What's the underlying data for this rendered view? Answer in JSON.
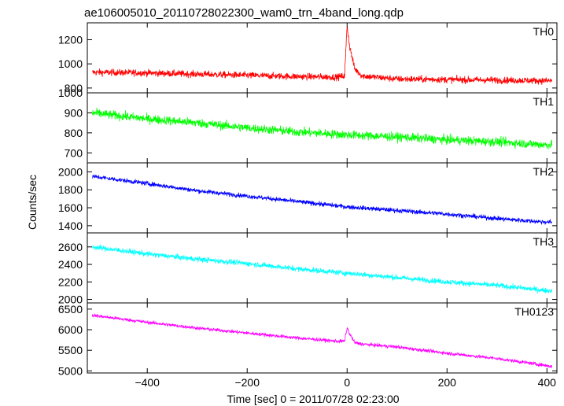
{
  "chart_data": {
    "type": "line",
    "title": "ae106005010_20110728022300_wam0_trn_4band_long.qdp",
    "xlabel": "Time [sec] 0 = 2011/07/28 02:23:00",
    "ylabel": "Counts/sec",
    "xlim": [
      -520,
      420
    ],
    "x_ticks": [
      -400,
      -200,
      0,
      200,
      400
    ],
    "x_tick_labels": [
      "−400",
      "−200",
      "0",
      "200",
      "400"
    ],
    "grid": false,
    "panels": [
      {
        "name": "TH0",
        "color": "#ff0000",
        "ylim": [
          760,
          1340
        ],
        "y_ticks": [
          800,
          1000,
          1200
        ],
        "y_tick_labels": [
          "800",
          "1000",
          "1200"
        ],
        "x": [
          -510,
          -400,
          -300,
          -200,
          -100,
          -20,
          -5,
          0,
          5,
          15,
          30,
          100,
          200,
          300,
          400,
          410
        ],
        "y": [
          930,
          925,
          915,
          905,
          895,
          890,
          900,
          1320,
          1150,
          960,
          900,
          875,
          870,
          865,
          860,
          860
        ],
        "noise": 50
      },
      {
        "name": "TH1",
        "color": "#00ff00",
        "ylim": [
          650,
          1000
        ],
        "y_ticks": [
          700,
          800,
          900,
          1000
        ],
        "y_tick_labels": [
          "700",
          "800",
          "900",
          "1000"
        ],
        "x": [
          -510,
          -400,
          -300,
          -200,
          -100,
          0,
          100,
          200,
          300,
          400,
          410
        ],
        "y": [
          900,
          870,
          850,
          825,
          805,
          790,
          780,
          765,
          755,
          740,
          740
        ],
        "noise": 40
      },
      {
        "name": "TH2",
        "color": "#0000ff",
        "ylim": [
          1320,
          2100
        ],
        "y_ticks": [
          1400,
          1600,
          1800,
          2000
        ],
        "y_tick_labels": [
          "1400",
          "1600",
          "1800",
          "2000"
        ],
        "x": [
          -510,
          -400,
          -300,
          -200,
          -100,
          0,
          100,
          200,
          300,
          400,
          410
        ],
        "y": [
          1950,
          1870,
          1790,
          1730,
          1670,
          1610,
          1570,
          1530,
          1480,
          1440,
          1440
        ],
        "noise": 45
      },
      {
        "name": "TH3",
        "color": "#00ffff",
        "ylim": [
          1960,
          2760
        ],
        "y_ticks": [
          2000,
          2200,
          2400,
          2600
        ],
        "y_tick_labels": [
          "2000",
          "2200",
          "2400",
          "2600"
        ],
        "x": [
          -510,
          -400,
          -300,
          -200,
          -100,
          0,
          100,
          200,
          300,
          400,
          410
        ],
        "y": [
          2600,
          2520,
          2460,
          2410,
          2350,
          2300,
          2250,
          2200,
          2160,
          2100,
          2100
        ],
        "noise": 55
      },
      {
        "name": "TH0123",
        "color": "#ff00ff",
        "ylim": [
          4950,
          6650
        ],
        "y_ticks": [
          5000,
          5500,
          6000,
          6500
        ],
        "y_tick_labels": [
          "5000",
          "5500",
          "6000",
          "6500"
        ],
        "x": [
          -510,
          -400,
          -300,
          -200,
          -100,
          -20,
          -5,
          0,
          5,
          15,
          30,
          100,
          200,
          300,
          400,
          410
        ],
        "y": [
          6350,
          6180,
          6040,
          5920,
          5800,
          5720,
          5720,
          6050,
          5900,
          5690,
          5650,
          5580,
          5430,
          5300,
          5130,
          5100
        ],
        "noise": 75
      }
    ]
  }
}
